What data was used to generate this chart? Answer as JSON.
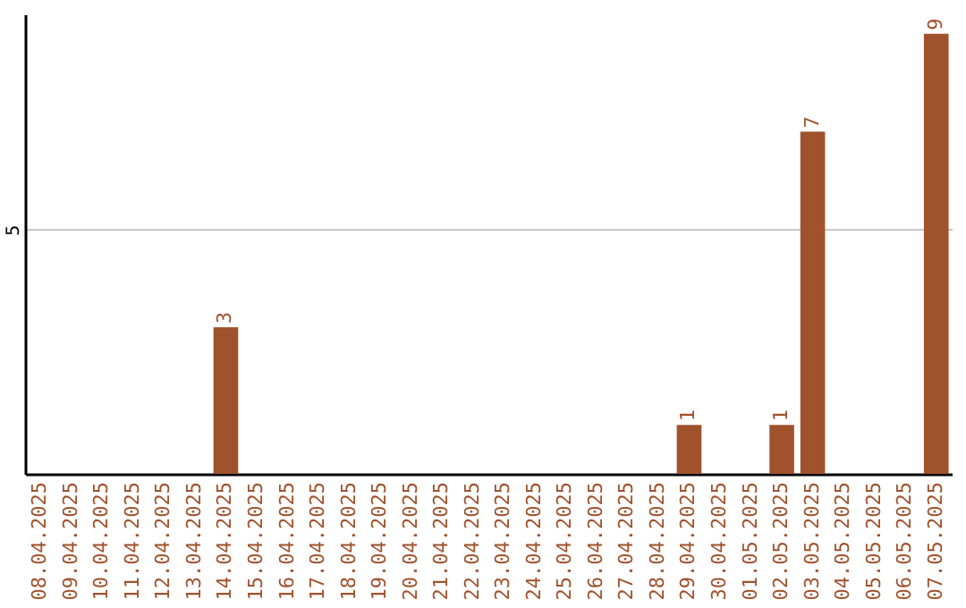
{
  "chart_data": {
    "type": "bar",
    "categories": [
      "08.04.2025",
      "09.04.2025",
      "10.04.2025",
      "11.04.2025",
      "12.04.2025",
      "13.04.2025",
      "14.04.2025",
      "15.04.2025",
      "16.04.2025",
      "17.04.2025",
      "18.04.2025",
      "19.04.2025",
      "20.04.2025",
      "21.04.2025",
      "22.04.2025",
      "23.04.2025",
      "24.04.2025",
      "25.04.2025",
      "26.04.2025",
      "27.04.2025",
      "28.04.2025",
      "29.04.2025",
      "30.04.2025",
      "01.05.2025",
      "02.05.2025",
      "03.05.2025",
      "04.05.2025",
      "05.05.2025",
      "06.05.2025",
      "07.05.2025"
    ],
    "values": [
      0,
      0,
      0,
      0,
      0,
      0,
      3,
      0,
      0,
      0,
      0,
      0,
      0,
      0,
      0,
      0,
      0,
      0,
      0,
      0,
      0,
      1,
      0,
      0,
      1,
      7,
      0,
      0,
      0,
      9
    ],
    "value_labels": [
      null,
      null,
      null,
      null,
      null,
      null,
      "3",
      null,
      null,
      null,
      null,
      null,
      null,
      null,
      null,
      null,
      null,
      null,
      null,
      null,
      null,
      "1",
      null,
      null,
      "1",
      "7",
      null,
      null,
      null,
      "9"
    ],
    "color": "#a0522d",
    "ylim": [
      0,
      9.4
    ],
    "yticks": [
      5
    ],
    "grid": "y"
  }
}
